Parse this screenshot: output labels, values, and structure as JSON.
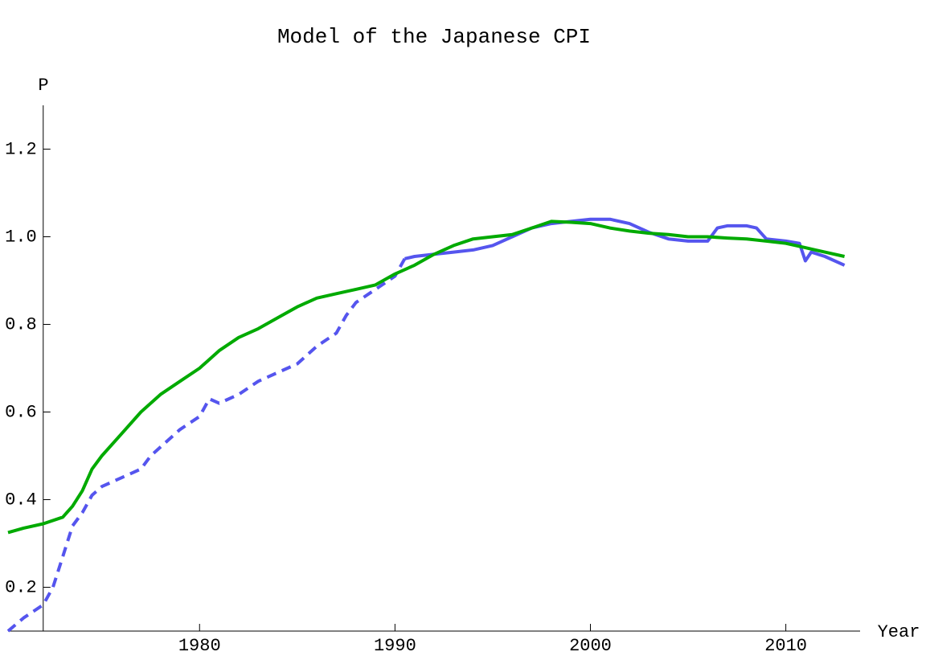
{
  "chart_data": {
    "type": "line",
    "title": "Model of the Japanese CPI",
    "x_label": "Year",
    "y_label": "P",
    "xlim": [
      1970.2,
      2013.8
    ],
    "ylim": [
      0.1,
      1.3
    ],
    "y_axis_at": 1972,
    "xticks": [
      1980,
      1990,
      2000,
      2010
    ],
    "yticks": [
      0.2,
      0.4,
      0.6,
      0.8,
      {
        "value": 1,
        "label": "1.0"
      },
      1.2
    ],
    "series": [
      {
        "color": "#5555ee",
        "dashed": true,
        "x": [
          1970.2,
          1971,
          1972,
          1972.5,
          1973,
          1973.5,
          1974,
          1974.5,
          1975,
          1976,
          1977,
          1977.5,
          1978,
          1979,
          1980,
          1980.5,
          1981,
          1982,
          1983,
          1984,
          1985,
          1986,
          1987,
          1987.5,
          1988,
          1989,
          1990,
          1990.5
        ],
        "values": [
          0.1,
          0.13,
          0.16,
          0.2,
          0.27,
          0.34,
          0.37,
          0.41,
          0.43,
          0.45,
          0.47,
          0.5,
          0.52,
          0.56,
          0.59,
          0.63,
          0.62,
          0.64,
          0.67,
          0.69,
          0.71,
          0.75,
          0.78,
          0.82,
          0.85,
          0.88,
          0.91,
          0.95
        ]
      },
      {
        "color": "#5555ee",
        "dashed": false,
        "x": [
          1990.5,
          1991,
          1992,
          1993,
          1994,
          1995,
          1996,
          1997,
          1998,
          1999,
          2000,
          2001,
          2002,
          2003,
          2004,
          2005,
          2006,
          2006.5,
          2007,
          2008,
          2008.5,
          2009,
          2010,
          2010.7,
          2011,
          2011.3,
          2012,
          2013
        ],
        "values": [
          0.95,
          0.955,
          0.96,
          0.965,
          0.97,
          0.98,
          1.0,
          1.02,
          1.03,
          1.035,
          1.04,
          1.04,
          1.03,
          1.01,
          0.995,
          0.99,
          0.99,
          1.02,
          1.025,
          1.025,
          1.02,
          0.995,
          0.99,
          0.985,
          0.945,
          0.965,
          0.955,
          0.935
        ]
      },
      {
        "color": "#00aa00",
        "dashed": false,
        "x": [
          1970.2,
          1971,
          1972,
          1973,
          1973.5,
          1974,
          1974.5,
          1975,
          1976,
          1977,
          1978,
          1979,
          1980,
          1981,
          1982,
          1983,
          1984,
          1985,
          1986,
          1987,
          1988,
          1989,
          1990,
          1991,
          1992,
          1993,
          1994,
          1995,
          1996,
          1997,
          1998,
          1999,
          2000,
          2001,
          2002,
          2003,
          2004,
          2005,
          2006,
          2007,
          2008,
          2009,
          2010,
          2011,
          2012,
          2013
        ],
        "values": [
          0.325,
          0.335,
          0.345,
          0.36,
          0.385,
          0.42,
          0.47,
          0.5,
          0.55,
          0.6,
          0.64,
          0.67,
          0.7,
          0.74,
          0.77,
          0.79,
          0.815,
          0.84,
          0.86,
          0.87,
          0.88,
          0.89,
          0.915,
          0.935,
          0.96,
          0.98,
          0.995,
          1.0,
          1.005,
          1.02,
          1.035,
          1.033,
          1.03,
          1.02,
          1.013,
          1.008,
          1.005,
          1.0,
          1.0,
          0.997,
          0.995,
          0.99,
          0.985,
          0.975,
          0.965,
          0.955
        ]
      }
    ]
  }
}
